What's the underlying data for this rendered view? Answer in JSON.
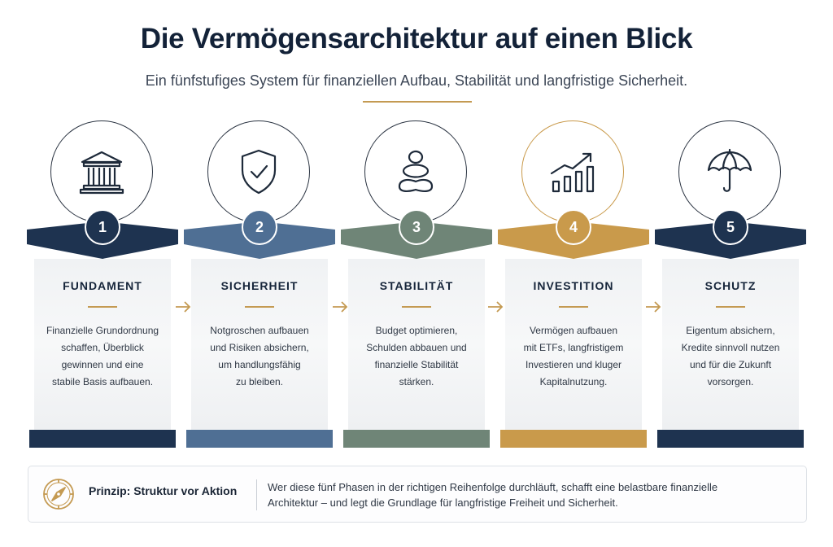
{
  "header": {
    "title": "Die Vermögensarchitektur auf einen Blick",
    "subtitle": "Ein fünfstufiges System für finanziellen Aufbau, Stabilität und langfristige Sicherheit."
  },
  "steps": [
    {
      "number": "1",
      "title": "FUNDAMENT",
      "lines": [
        "Finanzielle Grundordnung",
        "schaffen, Überblick",
        "gewinnen und eine",
        "stabile Basis aufbauen."
      ],
      "icon": "bank-icon",
      "color": "#1e3350"
    },
    {
      "number": "2",
      "title": "SICHERHEIT",
      "lines": [
        "Notgroschen aufbauen",
        "und Risiken absichern,",
        "um handlungsfähig",
        "zu bleiben."
      ],
      "icon": "shield-check-icon",
      "color": "#4f6f94"
    },
    {
      "number": "3",
      "title": "STABILITÄT",
      "lines": [
        "Budget optimieren,",
        "Schulden abbauen und",
        "finanzielle Stabilität",
        "stärken."
      ],
      "icon": "balance-stones-icon",
      "color": "#6f8577"
    },
    {
      "number": "4",
      "title": "INVESTITION",
      "lines": [
        "Vermögen aufbauen",
        "mit ETFs, langfristigem",
        "Investieren und kluger",
        "Kapitalnutzung."
      ],
      "icon": "growth-chart-icon",
      "color": "#c99a4b"
    },
    {
      "number": "5",
      "title": "SCHUTZ",
      "lines": [
        "Eigentum absichern,",
        "Kredite sinnvoll nutzen",
        "und für die Zukunft",
        "vorsorgen."
      ],
      "icon": "umbrella-icon",
      "color": "#1e3350"
    }
  ],
  "principle": {
    "title": "Prinzip: Struktur vor Aktion",
    "lines": [
      "Wer diese fünf Phasen in der richtigen Reihenfolge durchläuft, schafft eine belastbare finanzielle",
      "Architektur – und legt die Grundlage für langfristige Freiheit und Sicherheit."
    ],
    "icon": "compass-icon"
  },
  "colors": {
    "accent": "#c49a52",
    "navy": "#132238"
  }
}
